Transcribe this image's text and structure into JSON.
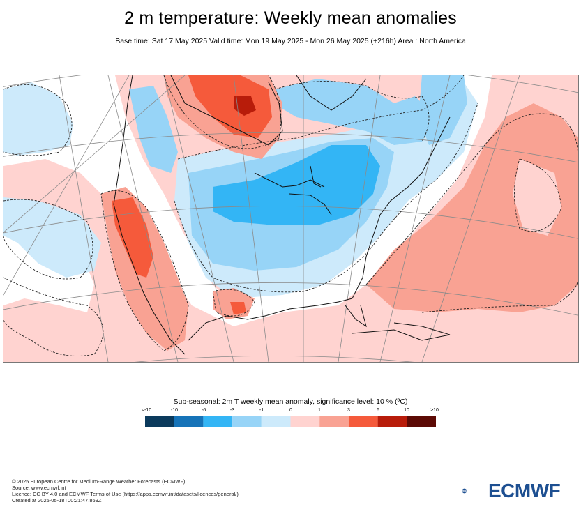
{
  "header": {
    "title": "2 m temperature: Weekly mean anomalies",
    "subtitle": "Base time: Sat 17 May 2025 Valid time: Mon 19 May 2025 - Mon 26 May 2025 (+216h) Area : North America"
  },
  "map": {
    "region": "North America",
    "projection": "conic",
    "features": [
      "coastlines",
      "lakes",
      "graticule",
      "anomaly-fill",
      "significance-contours"
    ]
  },
  "legend": {
    "title": "Sub-seasonal: 2m T weekly mean anomaly, significance level: 10 % (ºC)",
    "ticks": [
      "<-10",
      "-10",
      "-6",
      "-3",
      "-1",
      "0",
      "1",
      "3",
      "6",
      "10",
      ">10"
    ],
    "colors": [
      "#0b3a5c",
      "#1673b8",
      "#33b5f5",
      "#97d4f7",
      "#cdeafb",
      "#ffd3d0",
      "#f9a293",
      "#f55a3b",
      "#b81c0a",
      "#5c0a05"
    ]
  },
  "footer": {
    "line1": "© 2025 European Centre for Medium-Range Weather Forecasts (ECMWF)",
    "line2": "Source: www.ecmwf.int",
    "line3": "Licence: CC BY 4.0 and ECMWF Terms of Use (https://apps.ecmwf.int/datasets/licences/general/)",
    "line4": "Created at 2025-05-18T00:21:47.869Z"
  },
  "logo": {
    "text": "ECMWF",
    "color": "#1d4f91"
  }
}
